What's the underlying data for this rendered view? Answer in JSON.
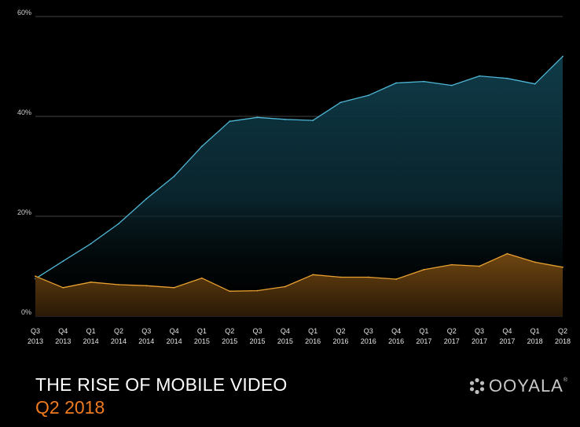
{
  "chart_data": {
    "type": "area",
    "title": "THE RISE OF MOBILE VIDEO",
    "subtitle": "Q2 2018",
    "x": [
      [
        "Q3",
        "2013"
      ],
      [
        "Q4",
        "2013"
      ],
      [
        "Q1",
        "2014"
      ],
      [
        "Q2",
        "2014"
      ],
      [
        "Q3",
        "2014"
      ],
      [
        "Q4",
        "2014"
      ],
      [
        "Q1",
        "2015"
      ],
      [
        "Q2",
        "2015"
      ],
      [
        "Q3",
        "2015"
      ],
      [
        "Q4",
        "2015"
      ],
      [
        "Q1",
        "2016"
      ],
      [
        "Q2",
        "2016"
      ],
      [
        "Q3",
        "2016"
      ],
      [
        "Q4",
        "2016"
      ],
      [
        "Q1",
        "2017"
      ],
      [
        "Q2",
        "2017"
      ],
      [
        "Q3",
        "2017"
      ],
      [
        "Q4",
        "2017"
      ],
      [
        "Q1",
        "2018"
      ],
      [
        "Q2",
        "2018"
      ]
    ],
    "yticks": [
      "0%",
      "20%",
      "40%",
      "60%"
    ],
    "ylim": [
      0,
      60
    ],
    "grid": true,
    "series": [
      {
        "color": "#4fb6d6",
        "values": [
          7.5,
          11,
          14.5,
          18.5,
          23.5,
          28,
          34,
          39,
          39.8,
          39.4,
          39.2,
          42.8,
          44.2,
          46.7,
          47,
          46.2,
          48.1,
          47.6,
          46.5,
          52
        ]
      },
      {
        "color": "#e8a030",
        "values": [
          8,
          5.7,
          6.8,
          6.3,
          6.1,
          5.7,
          7.6,
          5,
          5.1,
          5.9,
          8.3,
          7.8,
          7.8,
          7.4,
          9.3,
          10.3,
          10,
          12.5,
          10.8,
          9.8
        ]
      }
    ]
  },
  "logo": {
    "word": "OOYALA",
    "symbol": "®"
  }
}
